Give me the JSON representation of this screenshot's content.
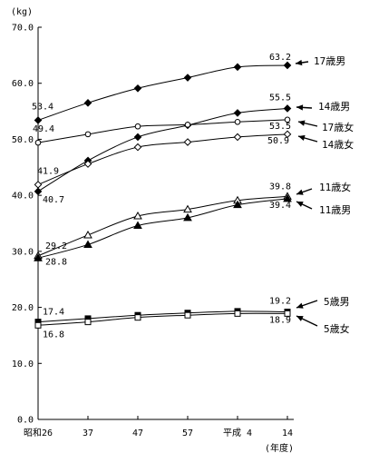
{
  "chart_data": {
    "type": "line",
    "ylabel": "(kg)",
    "xlabel": "(年度)",
    "ylim": [
      0,
      70
    ],
    "yticks": [
      "0.0",
      "10.0",
      "20.0",
      "30.0",
      "40.0",
      "50.0",
      "60.0",
      "70.0"
    ],
    "categories": [
      "昭和26",
      "37",
      "47",
      "57",
      "平成 4",
      "14"
    ],
    "grid": false,
    "series": [
      {
        "name": "17歳男",
        "marker": "diamond-filled",
        "values": [
          53.4,
          56.5,
          59.1,
          61.0,
          62.9,
          63.2
        ],
        "labels": [
          {
            "i": 0,
            "text": "53.4"
          },
          {
            "i": 5,
            "text": "63.2"
          }
        ]
      },
      {
        "name": "14歳男",
        "marker": "diamond-filled",
        "values": [
          40.7,
          46.2,
          50.4,
          52.5,
          54.7,
          55.5
        ],
        "labels": [
          {
            "i": 0,
            "text": "40.7"
          },
          {
            "i": 5,
            "text": "55.5"
          }
        ]
      },
      {
        "name": "17歳女",
        "marker": "circle-open",
        "values": [
          49.4,
          50.9,
          52.3,
          52.6,
          53.1,
          53.5
        ],
        "labels": [
          {
            "i": 0,
            "text": "49.4"
          },
          {
            "i": 5,
            "text": "53.5"
          }
        ]
      },
      {
        "name": "14歳女",
        "marker": "diamond-open",
        "values": [
          41.9,
          45.6,
          48.6,
          49.5,
          50.4,
          50.9
        ],
        "labels": [
          {
            "i": 0,
            "text": "41.9"
          },
          {
            "i": 5,
            "text": "50.9"
          }
        ]
      },
      {
        "name": "11歳女",
        "marker": "triangle-open",
        "values": [
          29.2,
          32.9,
          36.3,
          37.5,
          39.1,
          39.8
        ],
        "labels": [
          {
            "i": 0,
            "text": "29.2"
          },
          {
            "i": 5,
            "text": "39.8"
          }
        ]
      },
      {
        "name": "11歳男",
        "marker": "triangle-filled",
        "values": [
          28.8,
          31.2,
          34.6,
          36.0,
          38.3,
          39.4
        ],
        "labels": [
          {
            "i": 0,
            "text": "28.8"
          },
          {
            "i": 5,
            "text": "39.4"
          }
        ]
      },
      {
        "name": "5歳男",
        "marker": "square-filled",
        "values": [
          17.4,
          18.0,
          18.6,
          19.0,
          19.3,
          19.2
        ],
        "labels": [
          {
            "i": 0,
            "text": "17.4"
          },
          {
            "i": 5,
            "text": "19.2"
          }
        ]
      },
      {
        "name": "5歳女",
        "marker": "square-open",
        "values": [
          16.8,
          17.4,
          18.2,
          18.6,
          18.9,
          18.9
        ],
        "labels": [
          {
            "i": 0,
            "text": "16.8"
          },
          {
            "i": 5,
            "text": "18.9"
          }
        ]
      }
    ]
  }
}
